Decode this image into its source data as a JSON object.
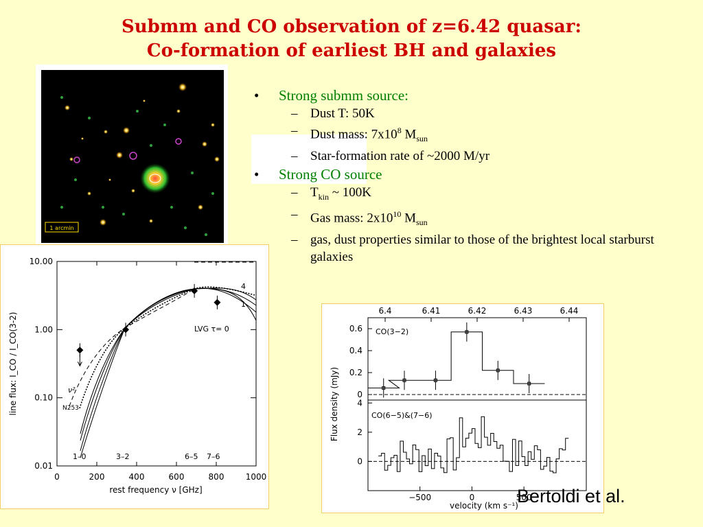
{
  "title": {
    "line1": "Submm and CO observation of z=6.42 quasar:",
    "line2": "Co-formation of earliest BH and galaxies"
  },
  "bullets": [
    {
      "text": "Strong submm source:",
      "subs": [
        {
          "pre": "Dust T: 50K"
        },
        {
          "pre": "Dust mass: 7x10",
          "sup": "8",
          "mid": " M",
          "sub": "sun"
        },
        {
          "pre": "Star-formation rate of ~2000 M/yr"
        }
      ]
    },
    {
      "text": "Strong CO source",
      "subs": [
        {
          "pre": "T",
          "sub": "kin",
          "post": " ~ 100K"
        },
        {
          "pre": "Gas mass: 2x10",
          "sup": "10",
          "mid": " M",
          "sub": "sun"
        },
        {
          "pre": "gas, dust properties similar to those of the brightest local starburst galaxies"
        }
      ]
    }
  ],
  "credit": "Bertoldi et al.",
  "image_panel": {
    "scale_label": "1 arcmin"
  },
  "chart_data": [
    {
      "type": "line",
      "xlabel": "rest frequency ν [GHz]",
      "ylabel": "line flux: I_CO / I_CO(3-2)",
      "xlim": [
        0,
        1000
      ],
      "ylim": [
        0.01,
        10
      ],
      "yscale": "log",
      "x_ticks": [
        "0",
        "200",
        "400",
        "600",
        "800",
        "1000"
      ],
      "y_ticks": [
        "0.01",
        "0.10",
        "1.00",
        "10.00"
      ],
      "annotations": [
        "LVG τ= 0",
        "4",
        "1",
        "N253",
        "ν²",
        "1–0",
        "3–2",
        "6–5",
        "7–6"
      ],
      "series": [
        {
          "values": [
            {
              "x": 115,
              "y": 0.5
            },
            {
              "x": 345,
              "y": 1.0
            },
            {
              "x": 690,
              "y": 3.7
            },
            {
              "x": 805,
              "y": 2.5
            }
          ]
        }
      ]
    },
    {
      "type": "line",
      "xlabel": "velocity (km s⁻¹)",
      "ylabel": "Flux density (mJy)",
      "top_xlabel_ticks": [
        "6.4",
        "6.41",
        "6.42",
        "6.43",
        "6.44"
      ],
      "panel_a": {
        "label": "CO(3−2)",
        "ylim": [
          -0.05,
          0.7
        ],
        "y_ticks": [
          "0",
          "0.2",
          "0.4",
          "0.6"
        ],
        "x_ticks": [
          -500,
          0,
          500
        ],
        "velocity": [
          -850,
          -650,
          -350,
          -50,
          250,
          550
        ],
        "flux": [
          0.06,
          0.13,
          0.13,
          0.57,
          0.22,
          0.1
        ]
      },
      "panel_b": {
        "label": "CO(6−5)&(7−6)",
        "ylim": [
          -2,
          4.2
        ],
        "y_ticks": [
          "0",
          "2",
          "4"
        ],
        "x_tick_labels": [
          "−500",
          "0",
          "500"
        ]
      }
    }
  ]
}
